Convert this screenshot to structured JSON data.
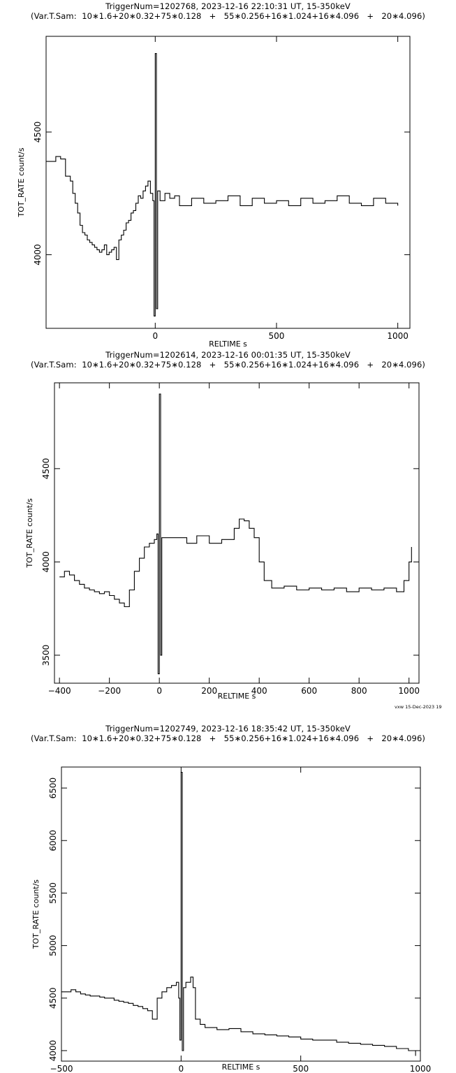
{
  "footer_stamp": "vxw 15-Dec-2023 19",
  "chart_data": [
    {
      "type": "line",
      "title": "TriggerNum=1202768, 2023-12-16 22:10:31 UT, 15-350keV",
      "subtitle": "(Var.T.Sam:  10∗1.6+20∗0.32+75∗0.128   +   55∗0.256+16∗1.024+16∗4.096   +   20∗4.096)",
      "xlabel": "RELTIME   s",
      "ylabel": "TOT_RATE   count/s",
      "xlim": [
        -450,
        1050
      ],
      "ylim": [
        3700,
        4890
      ],
      "xticks": [
        0,
        500,
        1000
      ],
      "yticks": [
        4000,
        4500
      ],
      "grid": false,
      "series": [
        {
          "x": [
            -450,
            -410,
            -390,
            -370,
            -350,
            -340,
            -330,
            -320,
            -310,
            -300,
            -290,
            -280,
            -270,
            -260,
            -250,
            -240,
            -230,
            -220,
            -210,
            -200,
            -190,
            -180,
            -170,
            -160,
            -150,
            -140,
            -130,
            -120,
            -110,
            -100,
            -90,
            -80,
            -70,
            -60,
            -50,
            -40,
            -30,
            -20,
            -10,
            -5,
            0,
            5,
            10,
            20,
            40,
            60,
            80,
            100,
            150,
            200,
            250,
            300,
            350,
            400,
            450,
            500,
            550,
            600,
            650,
            700,
            750,
            800,
            850,
            900,
            950,
            1000
          ],
          "y": [
            4380,
            4400,
            4390,
            4320,
            4300,
            4250,
            4210,
            4170,
            4120,
            4090,
            4080,
            4060,
            4050,
            4040,
            4030,
            4020,
            4010,
            4020,
            4040,
            4000,
            4010,
            4020,
            4030,
            3980,
            4060,
            4080,
            4100,
            4130,
            4140,
            4170,
            4180,
            4210,
            4240,
            4230,
            4260,
            4280,
            4300,
            4250,
            4220,
            3750,
            4820,
            3780,
            4260,
            4220,
            4250,
            4230,
            4240,
            4200,
            4230,
            4210,
            4220,
            4240,
            4200,
            4230,
            4210,
            4220,
            4200,
            4230,
            4210,
            4220,
            4240,
            4210,
            4200,
            4230,
            4210,
            4200
          ]
        }
      ]
    },
    {
      "type": "line",
      "title": "TriggerNum=1202614, 2023-12-16 00:01:35 UT, 15-350keV",
      "subtitle": "(Var.T.Sam:  10∗1.6+20∗0.32+75∗0.128   +   55∗0.256+16∗1.024+16∗4.096   +   20∗4.096)",
      "xlabel": "RELTIME   s",
      "ylabel": "TOT_RATE   count/s",
      "xlim": [
        -420,
        1040
      ],
      "ylim": [
        3350,
        4960
      ],
      "xticks": [
        -400,
        -200,
        0,
        200,
        400,
        600,
        800,
        1000
      ],
      "yticks": [
        3500,
        4000,
        4500
      ],
      "grid": false,
      "series": [
        {
          "x": [
            -400,
            -380,
            -360,
            -340,
            -320,
            -300,
            -280,
            -260,
            -240,
            -220,
            -200,
            -180,
            -160,
            -140,
            -120,
            -100,
            -80,
            -60,
            -40,
            -20,
            -10,
            -5,
            0,
            5,
            10,
            50,
            100,
            110,
            150,
            200,
            250,
            300,
            320,
            340,
            360,
            380,
            400,
            420,
            450,
            500,
            550,
            600,
            650,
            700,
            750,
            800,
            850,
            900,
            950,
            980,
            1000,
            1010
          ],
          "y": [
            3920,
            3950,
            3930,
            3900,
            3880,
            3860,
            3850,
            3840,
            3830,
            3840,
            3820,
            3800,
            3780,
            3760,
            3850,
            3950,
            4020,
            4080,
            4100,
            4120,
            4150,
            3400,
            4900,
            3500,
            4130,
            4130,
            4130,
            4100,
            4140,
            4100,
            4120,
            4180,
            4230,
            4220,
            4180,
            4130,
            4000,
            3900,
            3860,
            3870,
            3850,
            3860,
            3850,
            3860,
            3840,
            3860,
            3850,
            3860,
            3840,
            3900,
            4000,
            4080
          ]
        }
      ]
    },
    {
      "type": "line",
      "title": "TriggerNum=1202749, 2023-12-16 18:35:42 UT, 15-350keV",
      "subtitle": "(Var.T.Sam:  10∗1.6+20∗0.32+75∗0.128   +   55∗0.256+16∗1.024+16∗4.096   +   20∗4.096)",
      "xlabel": "RELTIME   s",
      "ylabel": "TOT_RATE   count/s",
      "xlim": [
        -500,
        1000
      ],
      "ylim": [
        3900,
        6700
      ],
      "xticks": [
        -500,
        0,
        500,
        1000
      ],
      "yticks": [
        4000,
        4500,
        5000,
        5500,
        6000,
        6500
      ],
      "grid": false,
      "series": [
        {
          "x": [
            -500,
            -480,
            -460,
            -440,
            -420,
            -400,
            -380,
            -360,
            -340,
            -320,
            -300,
            -280,
            -260,
            -240,
            -220,
            -200,
            -180,
            -160,
            -140,
            -120,
            -100,
            -80,
            -60,
            -40,
            -20,
            -10,
            -5,
            0,
            5,
            10,
            20,
            40,
            50,
            60,
            80,
            100,
            150,
            200,
            250,
            300,
            350,
            400,
            450,
            500,
            550,
            600,
            650,
            700,
            750,
            800,
            850,
            900,
            950,
            980
          ],
          "y": [
            4560,
            4560,
            4580,
            4560,
            4540,
            4530,
            4520,
            4520,
            4510,
            4500,
            4500,
            4480,
            4470,
            4460,
            4450,
            4430,
            4420,
            4400,
            4380,
            4300,
            4500,
            4560,
            4600,
            4620,
            4650,
            4500,
            4100,
            6650,
            4000,
            4600,
            4650,
            4700,
            4600,
            4300,
            4250,
            4220,
            4200,
            4210,
            4180,
            4160,
            4150,
            4140,
            4130,
            4110,
            4100,
            4100,
            4080,
            4070,
            4060,
            4050,
            4040,
            4020,
            4000,
            3950
          ]
        }
      ]
    }
  ]
}
